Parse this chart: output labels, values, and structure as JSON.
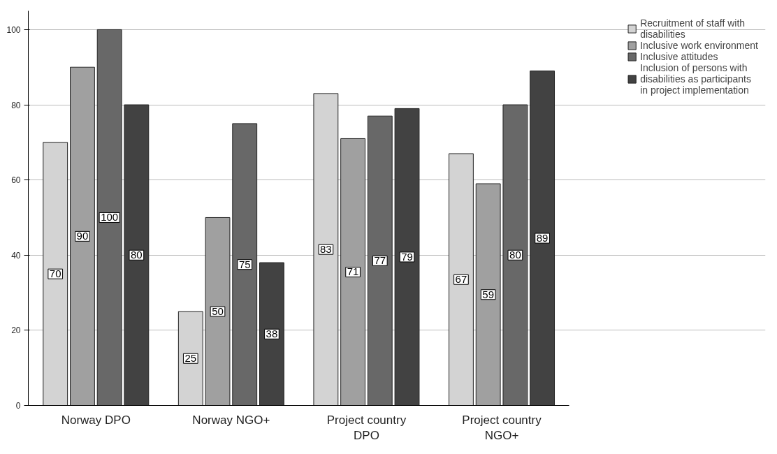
{
  "chart_data": {
    "type": "bar",
    "categories": [
      "Norway DPO",
      "Norway NGO+",
      "Project country DPO",
      "Project country NGO+"
    ],
    "series": [
      {
        "name": "Recruitment of staff with disabilities",
        "color": "#d3d3d3",
        "values": [
          70,
          25,
          83,
          67
        ]
      },
      {
        "name": "Inclusive work environment",
        "color": "#a0a0a0",
        "values": [
          90,
          50,
          71,
          59
        ]
      },
      {
        "name": "Inclusive attitudes",
        "color": "#686868",
        "values": [
          100,
          75,
          77,
          80
        ]
      },
      {
        "name": "Inclusion of persons with disabilities as participants in project implementation",
        "color": "#424242",
        "values": [
          80,
          38,
          79,
          89
        ]
      }
    ],
    "ylim": [
      0,
      105
    ],
    "yticks": [
      0,
      20,
      40,
      60,
      80,
      100
    ],
    "grid": "y",
    "legend": "top right",
    "data_labels": true
  }
}
